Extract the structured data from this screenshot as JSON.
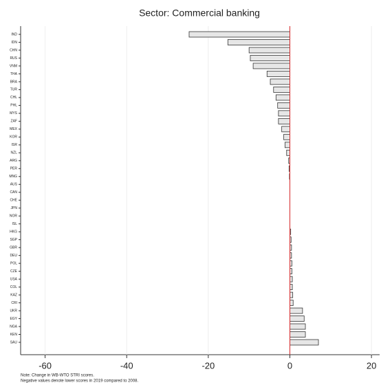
{
  "chart_data": {
    "type": "barh",
    "title": "Sector: Commercial banking",
    "categories": [
      "IND",
      "IDN",
      "CHN",
      "RUS",
      "VNM",
      "THA",
      "BRA",
      "TUR",
      "CHL",
      "PHL",
      "MYS",
      "ZAF",
      "MEX",
      "KOR",
      "ISR",
      "NZL",
      "ARG",
      "PER",
      "MNG",
      "AUS",
      "CAN",
      "CHE",
      "JPN",
      "NOR",
      "ISL",
      "HKG",
      "SGP",
      "GBR",
      "DEU",
      "POL",
      "CZE",
      "USA",
      "COL",
      "KAZ",
      "CRI",
      "UKR",
      "EGY",
      "NGA",
      "KEN",
      "SAU"
    ],
    "values": [
      -24.7,
      -15.2,
      -10,
      -9.7,
      -9,
      -5.6,
      -4.8,
      -4,
      -3.4,
      -3,
      -2.8,
      -2.8,
      -2,
      -1.5,
      -1.2,
      -0.8,
      -0.3,
      -0.2,
      -0.1,
      0,
      0,
      0,
      0,
      0,
      0,
      0.2,
      0.3,
      0.4,
      0.4,
      0.5,
      0.5,
      0.6,
      0.6,
      0.7,
      0.8,
      3.1,
      3.5,
      3.8,
      3.8,
      7
    ],
    "color": "#e6e6e6",
    "xlim": [
      -66,
      22
    ],
    "xticks": [
      -60,
      -40,
      -20,
      0,
      20
    ],
    "grid": true,
    "zero_line_color": "#d62728",
    "notes": [
      "Note: Change in WB-WTO STRI scores.",
      "Negative values denote lower scores in 2019 compared to 2008."
    ]
  }
}
